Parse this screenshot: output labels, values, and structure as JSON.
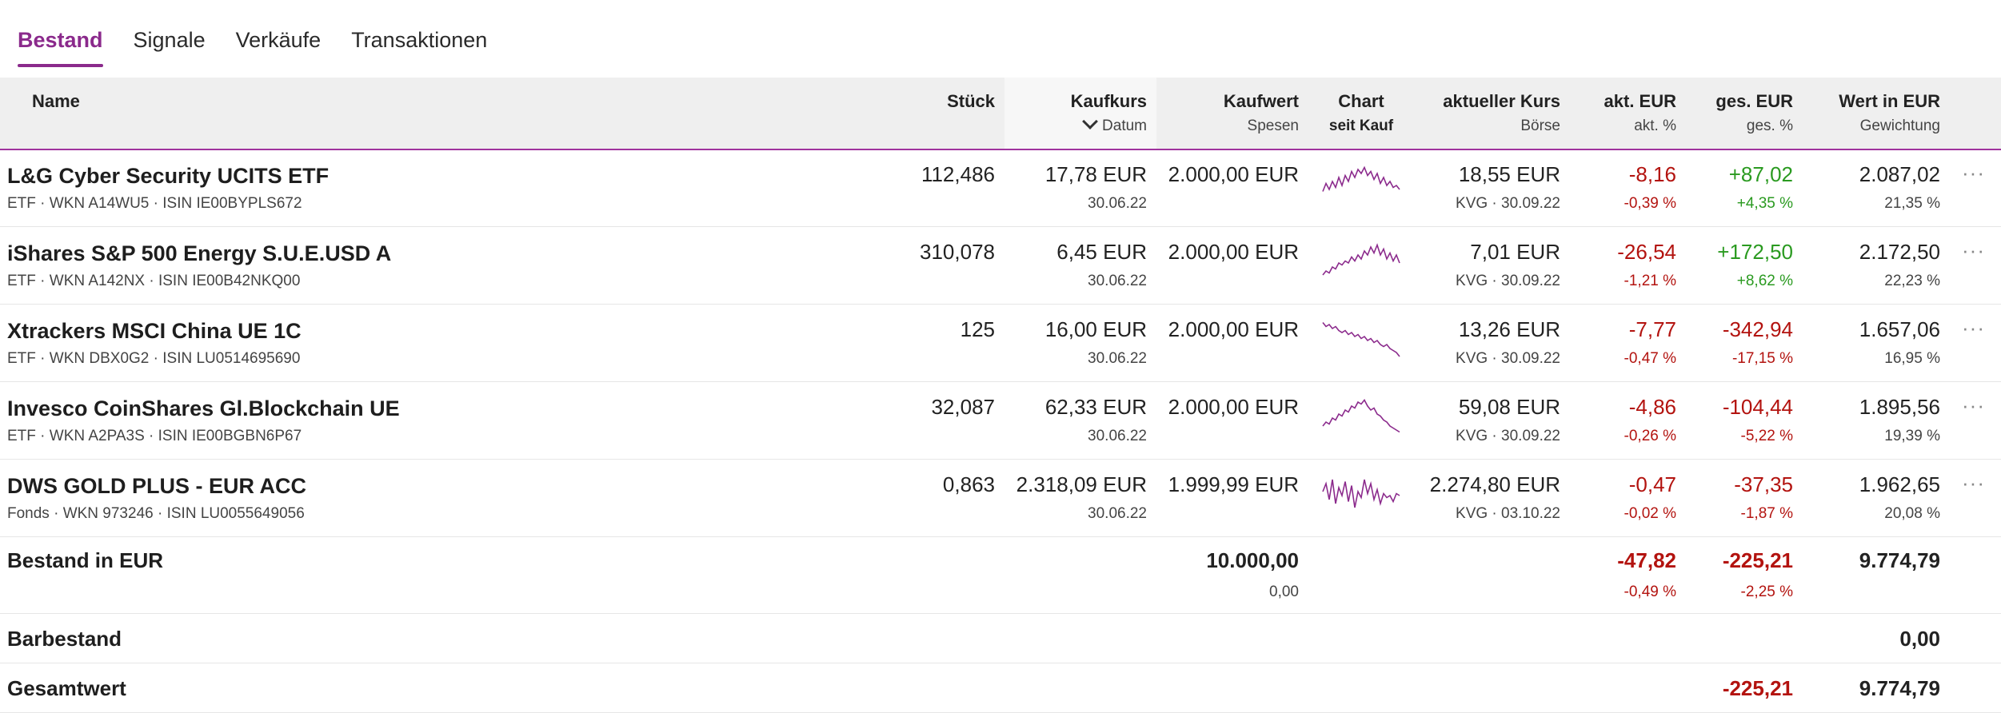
{
  "tabs": [
    "Bestand",
    "Signale",
    "Verkäufe",
    "Transaktionen"
  ],
  "columns": {
    "name": "Name",
    "stueck": "Stück",
    "kaufkurs": "Kaufkurs",
    "kaufkurs_sub": "Datum",
    "kaufwert": "Kaufwert",
    "kaufwert_sub": "Spesen",
    "chart": "Chart",
    "chart_sub": "seit Kauf",
    "kurs": "aktueller Kurs",
    "kurs_sub": "Börse",
    "akt": "akt. EUR",
    "akt_sub": "akt. %",
    "ges": "ges. EUR",
    "ges_sub": "ges. %",
    "wert": "Wert in EUR",
    "wert_sub": "Gewichtung"
  },
  "more_label": "···",
  "rows": [
    {
      "name": "L&G Cyber Security UCITS ETF",
      "meta": "ETF · WKN A14WU5 · ISIN IE00BYPLS672",
      "stueck": "112,486",
      "kaufkurs": "17,78 EUR",
      "datum": "30.06.22",
      "kaufwert": "2.000,00 EUR",
      "kurs": "18,55 EUR",
      "boerse": "KVG · 30.09.22",
      "akt_eur": "-8,16",
      "akt_pct": "-0,39 %",
      "ges_eur": "+87,02",
      "ges_pct": "+4,35 %",
      "wert": "2.087,02",
      "gewichtung": "21,35 %",
      "spark": [
        0.35,
        0.55,
        0.4,
        0.6,
        0.45,
        0.7,
        0.5,
        0.75,
        0.6,
        0.85,
        0.7,
        0.9,
        0.8,
        0.95,
        0.75,
        0.85,
        0.65,
        0.8,
        0.55,
        0.7,
        0.5,
        0.6,
        0.45,
        0.5,
        0.4
      ]
    },
    {
      "name": "iShares S&P 500 Energy S.U.E.USD A",
      "meta": "ETF · WKN A142NX · ISIN IE00B42NKQ00",
      "stueck": "310,078",
      "kaufkurs": "6,45 EUR",
      "datum": "30.06.22",
      "kaufwert": "2.000,00 EUR",
      "kurs": "7,01 EUR",
      "boerse": "KVG · 30.09.22",
      "akt_eur": "-26,54",
      "akt_pct": "-1,21 %",
      "ges_eur": "+172,50",
      "ges_pct": "+8,62 %",
      "wert": "2.172,50",
      "gewichtung": "22,23 %",
      "spark": [
        0.2,
        0.3,
        0.25,
        0.4,
        0.35,
        0.5,
        0.45,
        0.55,
        0.5,
        0.65,
        0.55,
        0.7,
        0.6,
        0.8,
        0.7,
        0.9,
        0.75,
        0.95,
        0.7,
        0.85,
        0.6,
        0.75,
        0.55,
        0.7,
        0.5
      ]
    },
    {
      "name": "Xtrackers MSCI China UE 1C",
      "meta": "ETF · WKN DBX0G2 · ISIN LU0514695690",
      "stueck": "125",
      "kaufkurs": "16,00 EUR",
      "datum": "30.06.22",
      "kaufwert": "2.000,00 EUR",
      "kurs": "13,26 EUR",
      "boerse": "KVG · 30.09.22",
      "akt_eur": "-7,77",
      "akt_pct": "-0,47 %",
      "ges_eur": "-342,94",
      "ges_pct": "-17,15 %",
      "wert": "1.657,06",
      "gewichtung": "16,95 %",
      "spark": [
        0.95,
        0.85,
        0.9,
        0.8,
        0.85,
        0.75,
        0.7,
        0.75,
        0.65,
        0.7,
        0.6,
        0.65,
        0.55,
        0.6,
        0.5,
        0.55,
        0.45,
        0.5,
        0.4,
        0.35,
        0.4,
        0.3,
        0.25,
        0.2,
        0.1
      ]
    },
    {
      "name": "Invesco CoinShares Gl.Blockchain UE",
      "meta": "ETF · WKN A2PA3S · ISIN IE00BGBN6P67",
      "stueck": "32,087",
      "kaufkurs": "62,33 EUR",
      "datum": "30.06.22",
      "kaufwert": "2.000,00 EUR",
      "kurs": "59,08 EUR",
      "boerse": "KVG · 30.09.22",
      "akt_eur": "-4,86",
      "akt_pct": "-0,26 %",
      "ges_eur": "-104,44",
      "ges_pct": "-5,22 %",
      "wert": "1.895,56",
      "gewichtung": "19,39 %",
      "spark": [
        0.3,
        0.4,
        0.35,
        0.5,
        0.45,
        0.6,
        0.55,
        0.7,
        0.65,
        0.8,
        0.75,
        0.9,
        0.85,
        0.95,
        0.8,
        0.7,
        0.75,
        0.6,
        0.55,
        0.45,
        0.4,
        0.3,
        0.25,
        0.2,
        0.15
      ]
    },
    {
      "name": "DWS GOLD PLUS - EUR ACC",
      "meta": "Fonds · WKN 973246 · ISIN LU0055649056",
      "stueck": "0,863",
      "kaufkurs": "2.318,09 EUR",
      "datum": "30.06.22",
      "kaufwert": "1.999,99 EUR",
      "kurs": "2.274,80 EUR",
      "boerse": "KVG · 03.10.22",
      "akt_eur": "-0,47",
      "akt_pct": "-0,02 %",
      "ges_eur": "-37,35",
      "ges_pct": "-1,87 %",
      "wert": "1.962,65",
      "gewichtung": "20,08 %",
      "spark": [
        0.6,
        0.8,
        0.4,
        0.9,
        0.3,
        0.7,
        0.5,
        0.85,
        0.35,
        0.75,
        0.2,
        0.6,
        0.45,
        0.9,
        0.55,
        0.8,
        0.4,
        0.65,
        0.3,
        0.55,
        0.45,
        0.5,
        0.35,
        0.55,
        0.5
      ]
    }
  ],
  "summary": {
    "bestand_label": "Bestand in EUR",
    "bestand_kaufwert": "10.000,00",
    "bestand_spesen": "0,00",
    "bestand_akt_eur": "-47,82",
    "bestand_akt_pct": "-0,49 %",
    "bestand_ges_eur": "-225,21",
    "bestand_ges_pct": "-2,25 %",
    "bestand_wert": "9.774,79",
    "bar_label": "Barbestand",
    "bar_wert": "0,00",
    "gesamt_label": "Gesamtwert",
    "gesamt_ges_eur": "-225,21",
    "gesamt_wert": "9.774,79"
  },
  "colors": {
    "accent": "#8b2a8c",
    "negative": "#b3130f",
    "positive": "#2a9a20"
  }
}
